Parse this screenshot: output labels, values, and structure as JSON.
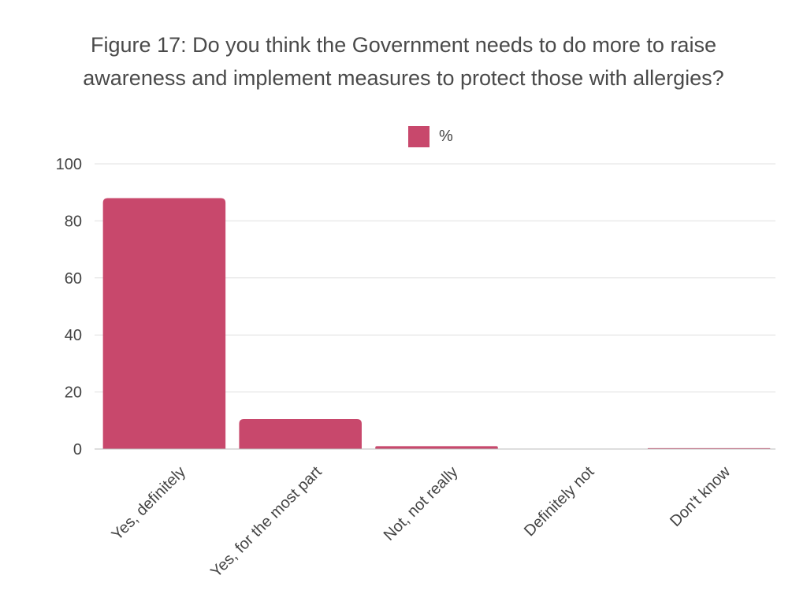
{
  "chart_data": {
    "type": "bar",
    "title_lines": [
      "Figure 17: Do you think the Government needs to do more to raise",
      "awareness and implement measures to protect those with allergies?"
    ],
    "categories": [
      "Yes, definitely",
      "Yes, for the most part",
      "Not, not really",
      "Definitely not",
      "Don't know"
    ],
    "series": [
      {
        "name": "%",
        "values": [
          88,
          10.5,
          1,
          0,
          0.3
        ]
      }
    ],
    "xlabel": "",
    "ylabel": "",
    "ylim": [
      0,
      100
    ],
    "yticks": [
      0,
      20,
      40,
      60,
      80,
      100
    ],
    "grid": true,
    "legend_position": "top-center",
    "colors": {
      "bar": "#c8486c",
      "grid": "#e0e0e0",
      "axis": "#bbbbbb"
    }
  }
}
